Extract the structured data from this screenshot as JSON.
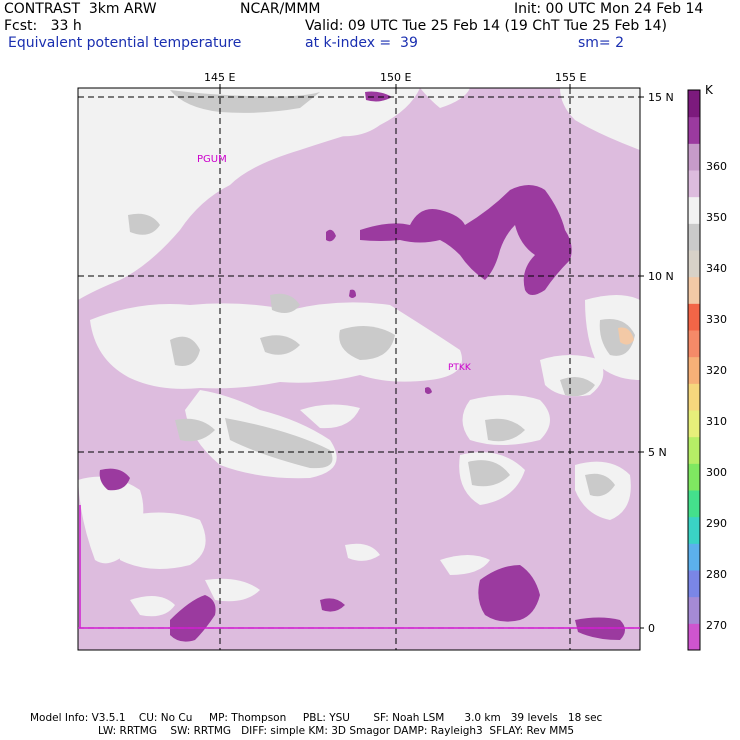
{
  "header": {
    "model": "CONTRAST  3km ARW",
    "institution": "NCAR/MMM",
    "init": "Init: 00 UTC Mon 24 Feb 14",
    "forecast": "Fcst:   33 h",
    "valid": "Valid: 09 UTC Tue 25 Feb 14 (19 ChT Tue 25 Feb 14)",
    "field": "Equivalent potential temperature",
    "level": "at k-index =  39",
    "smoothing": "sm= 2"
  },
  "lon_labels": [
    "145 E",
    "150 E",
    "155 E"
  ],
  "lat_labels": [
    "15 N",
    "10 N",
    "5 N",
    "0"
  ],
  "stations": [
    "PGUM",
    "PTKK"
  ],
  "colorbar": {
    "unit": "K",
    "ticks": [
      "360",
      "350",
      "340",
      "330",
      "320",
      "310",
      "300",
      "290",
      "280",
      "270"
    ],
    "colors": [
      "#ce55ce",
      "#a58ad5",
      "#7a86e6",
      "#5cb0ec",
      "#3ad3c5",
      "#44e08c",
      "#7fe861",
      "#b6ee66",
      "#e7ef7a",
      "#f6d77d",
      "#f7b077",
      "#f58a68",
      "#f36547",
      "#f3c9a6",
      "#d8d2c8",
      "#cacaca",
      "#f2f2f2",
      "#ddbcde",
      "#c69bc9",
      "#9b3a9f",
      "#7c1a7d"
    ]
  },
  "footer": {
    "line1": "Model Info: V3.5.1    CU: No Cu     MP: Thompson     PBL: YSU       SF: Noah LSM      3.0 km   39 levels   18 sec",
    "line2": "LW: RRTMG    SW: RRTMG   DIFF: simple KM: 3D Smagor DAMP: Rayleigh3  SFLAY: Rev MM5"
  }
}
